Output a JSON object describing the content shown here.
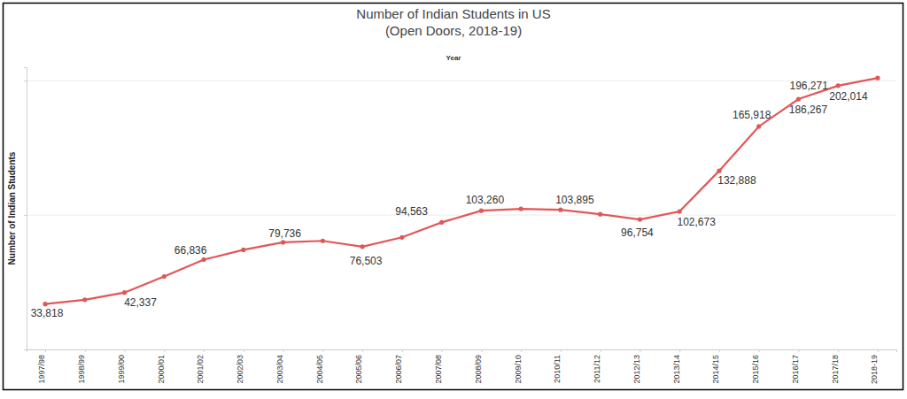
{
  "chart_data": {
    "type": "line",
    "title": "Number of Indian Students in US",
    "subtitle": "(Open Doors, 2018-19)",
    "x_label": "Year",
    "y_label": "Number of Indian Students",
    "categories": [
      "1997/98",
      "1998/99",
      "1999/00",
      "2000/01",
      "2001/02",
      "2002/03",
      "2003/04",
      "2004/05",
      "2005/06",
      "2006/07",
      "2007/08",
      "2008/09",
      "2009/10",
      "2010/11",
      "2011/12",
      "2012/13",
      "2013/14",
      "2014/15",
      "2015/16",
      "2016/17",
      "2017/18",
      "2018-19"
    ],
    "values": [
      33818,
      37000,
      42337,
      54300,
      66836,
      74100,
      79736,
      80800,
      76503,
      83400,
      94563,
      103260,
      104600,
      103895,
      100600,
      96754,
      102673,
      132888,
      165918,
      186267,
      196271,
      202014
    ],
    "value_labels": [
      "33,818",
      null,
      "42,337",
      null,
      "66,836",
      null,
      "79,736",
      null,
      "76,503",
      null,
      "94,563",
      "103,260",
      null,
      "103,895",
      null,
      "96,754",
      "102,673",
      "132,888",
      "165,918",
      "186,267",
      "196,271",
      "202,014"
    ],
    "color": "#e15759",
    "marker": "circle",
    "ylim": [
      0,
      210000
    ],
    "yticks": [
      0,
      100000,
      200000
    ],
    "grid": true,
    "data_labels": true,
    "tick_labels": "x"
  }
}
